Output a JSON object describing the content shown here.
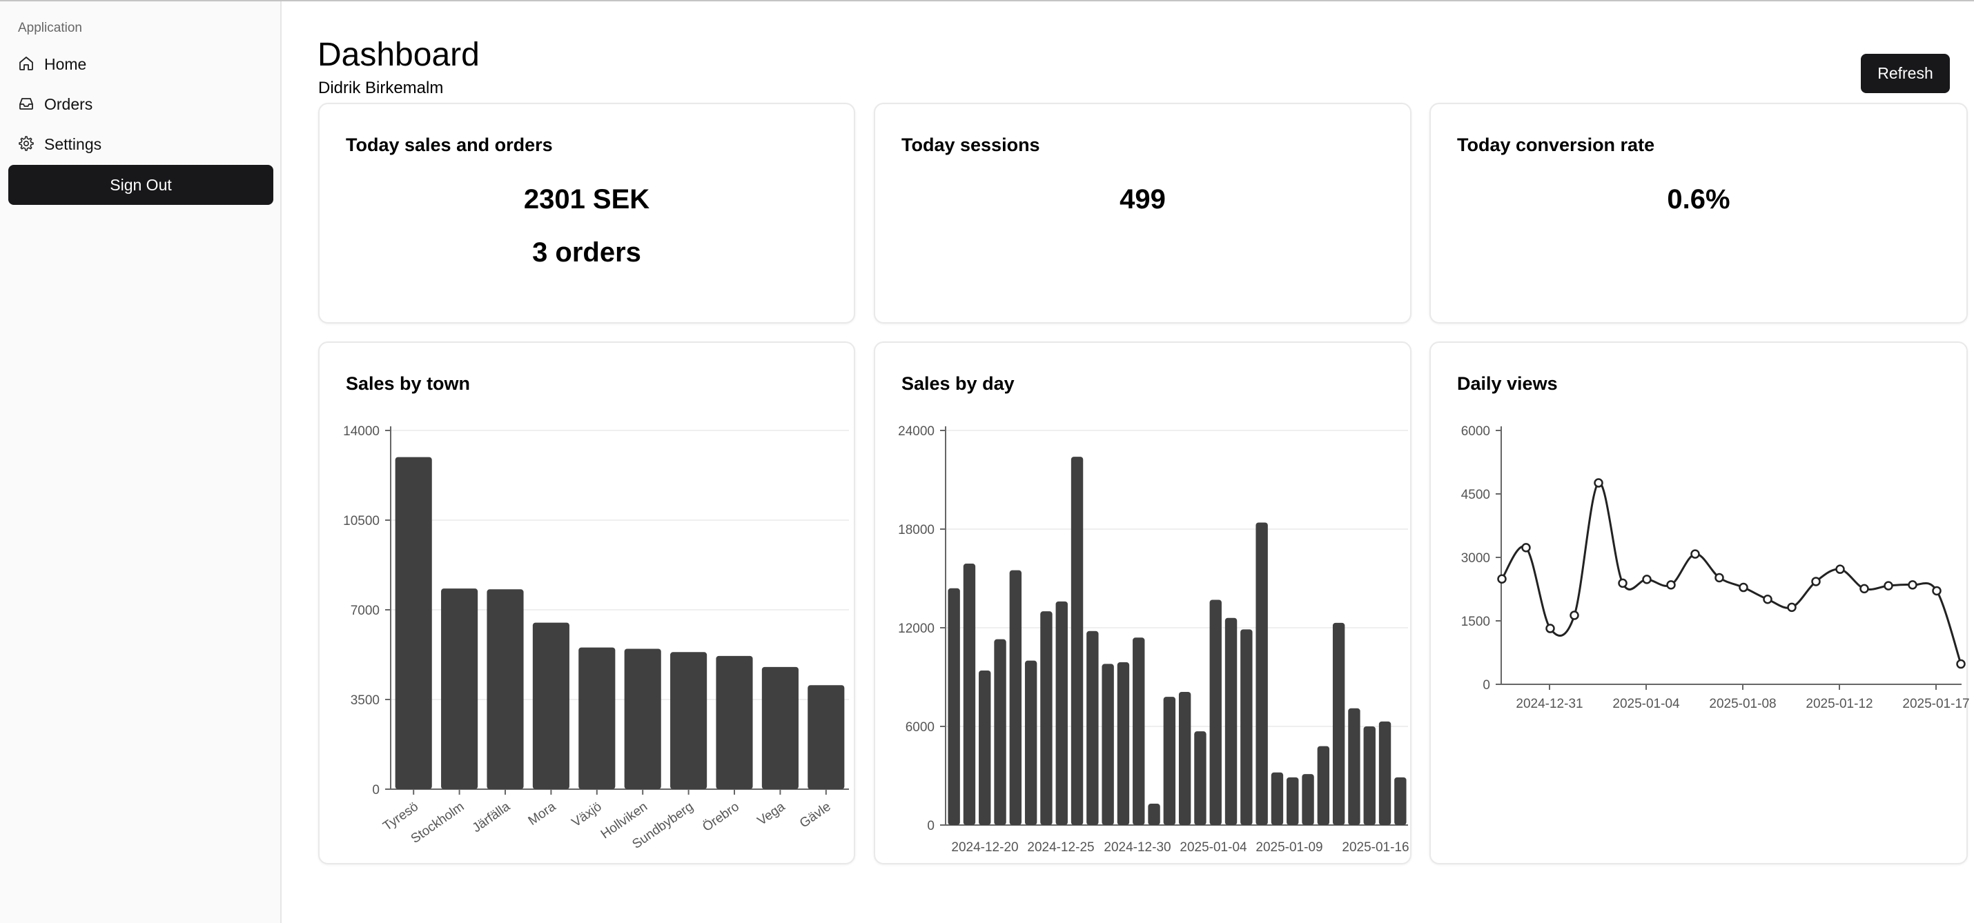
{
  "sidebar": {
    "heading": "Application",
    "items": [
      {
        "label": "Home",
        "icon": "home-icon"
      },
      {
        "label": "Orders",
        "icon": "inbox-icon"
      },
      {
        "label": "Settings",
        "icon": "gear-icon"
      }
    ],
    "sign_out": "Sign Out"
  },
  "header": {
    "title": "Dashboard",
    "user": "Didrik Birkemalm",
    "refresh": "Refresh"
  },
  "stats": {
    "sales": {
      "title": "Today sales and orders",
      "amount": "2301 SEK",
      "orders": "3 orders"
    },
    "sessions": {
      "title": "Today sessions",
      "value": "499"
    },
    "conversion": {
      "title": "Today conversion rate",
      "value": "0.6%"
    }
  },
  "colors": {
    "bar": "#404040",
    "line": "#222222",
    "grid": "#efefef",
    "button": "#18181b"
  },
  "chart_data": [
    {
      "type": "bar",
      "title": "Sales by town",
      "categories": [
        "Tyresö",
        "Stockholm",
        "Järfälla",
        "Mora",
        "Växjö",
        "Hollviken",
        "Sundbyberg",
        "Örebro",
        "Vega",
        "Gävle"
      ],
      "values": [
        12960,
        7830,
        7800,
        6500,
        5530,
        5480,
        5350,
        5200,
        4770,
        4060
      ],
      "yticks": [
        "0",
        "3500",
        "7000",
        "10500",
        "14000"
      ],
      "ylim": [
        0,
        14000
      ],
      "grid": true
    },
    {
      "type": "bar",
      "title": "Sales by day",
      "xticks": [
        "2024-12-20",
        "2024-12-25",
        "2024-12-30",
        "2025-01-04",
        "2025-01-09",
        "2025-01-16"
      ],
      "values": [
        14400,
        15900,
        9400,
        11300,
        15500,
        10000,
        13000,
        13600,
        22400,
        11800,
        9800,
        9900,
        11400,
        1300,
        7800,
        8100,
        5700,
        13700,
        12600,
        11900,
        18400,
        3200,
        2900,
        3100,
        4800,
        12300,
        7100,
        6000,
        6300,
        2900
      ],
      "yticks": [
        "0",
        "6000",
        "12000",
        "18000",
        "24000"
      ],
      "ylim": [
        0,
        24000
      ],
      "grid": true
    },
    {
      "type": "line",
      "title": "Daily views",
      "xticks": [
        "2024-12-31",
        "2025-01-04",
        "2025-01-08",
        "2025-01-12",
        "2025-01-17"
      ],
      "values": [
        2490,
        3230,
        1320,
        1630,
        4760,
        2390,
        2480,
        2350,
        3080,
        2520,
        2290,
        2010,
        1820,
        2430,
        2720,
        2260,
        2330,
        2350,
        2210,
        480
      ],
      "yticks": [
        "0",
        "1500",
        "3000",
        "4500",
        "6000"
      ],
      "ylim": [
        0,
        6000
      ],
      "grid": false
    }
  ]
}
